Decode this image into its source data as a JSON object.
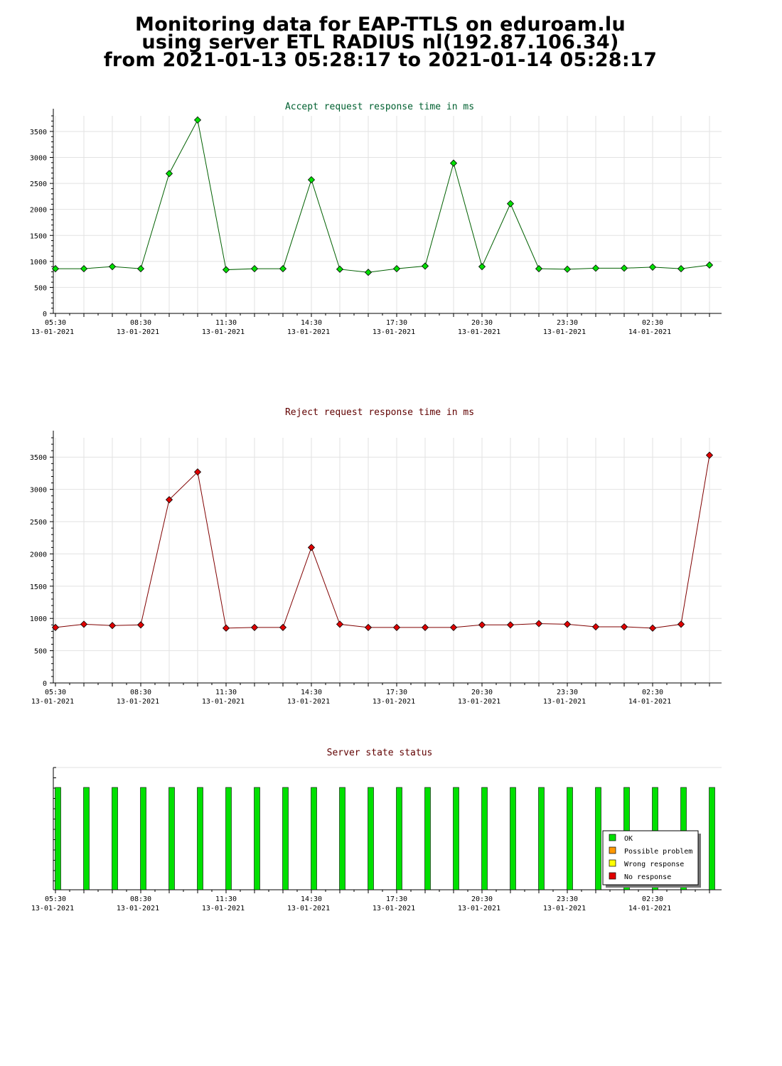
{
  "header": {
    "line1": "Monitoring data for EAP-TTLS on eduroam.lu",
    "line2": "using server ETL RADIUS nl(192.87.106.34)",
    "line3": "from 2021-01-13 05:28:17 to 2021-01-14 05:28:17"
  },
  "colors": {
    "accept_line": "#006000",
    "accept_marker": "#00e000",
    "reject_line": "#800000",
    "reject_marker": "#e00000",
    "accept_title": "#006030",
    "reject_title": "#600000",
    "status_title": "#600000",
    "ok": "#00e000",
    "possible_problem": "#ff9900",
    "wrong_response": "#ffff00",
    "no_response": "#e00000"
  },
  "chart_data": [
    {
      "type": "line",
      "title": "Accept request response time in ms",
      "ylim": [
        0,
        3800
      ],
      "yticks": [
        0,
        500,
        1000,
        1500,
        2000,
        2500,
        3000,
        3500
      ],
      "x_tick_labels": [
        {
          "time": "05:30",
          "date": "13-01-2021"
        },
        {
          "time": "08:30",
          "date": "13-01-2021"
        },
        {
          "time": "11:30",
          "date": "13-01-2021"
        },
        {
          "time": "14:30",
          "date": "13-01-2021"
        },
        {
          "time": "17:30",
          "date": "13-01-2021"
        },
        {
          "time": "20:30",
          "date": "13-01-2021"
        },
        {
          "time": "23:30",
          "date": "13-01-2021"
        },
        {
          "time": "02:30",
          "date": "14-01-2021"
        }
      ],
      "grid": true,
      "series": [
        {
          "values": [
            860,
            860,
            900,
            860,
            2690,
            3720,
            840,
            860,
            860,
            2570,
            850,
            790,
            860,
            910,
            2890,
            900,
            2110,
            860,
            850,
            870,
            870,
            890,
            860,
            930
          ]
        }
      ]
    },
    {
      "type": "line",
      "title": "Reject request response time in ms",
      "ylim": [
        0,
        3800
      ],
      "yticks": [
        0,
        500,
        1000,
        1500,
        2000,
        2500,
        3000,
        3500
      ],
      "x_tick_labels": [
        {
          "time": "05:30",
          "date": "13-01-2021"
        },
        {
          "time": "08:30",
          "date": "13-01-2021"
        },
        {
          "time": "11:30",
          "date": "13-01-2021"
        },
        {
          "time": "14:30",
          "date": "13-01-2021"
        },
        {
          "time": "17:30",
          "date": "13-01-2021"
        },
        {
          "time": "20:30",
          "date": "13-01-2021"
        },
        {
          "time": "23:30",
          "date": "13-01-2021"
        },
        {
          "time": "02:30",
          "date": "14-01-2021"
        }
      ],
      "grid": true,
      "series": [
        {
          "values": [
            860,
            910,
            890,
            900,
            2840,
            3270,
            850,
            860,
            860,
            2100,
            910,
            860,
            860,
            860,
            860,
            900,
            900,
            920,
            910,
            870,
            870,
            850,
            910,
            3530
          ]
        }
      ]
    },
    {
      "type": "bar",
      "title": "Server state status",
      "x_tick_labels": [
        {
          "time": "05:30",
          "date": "13-01-2021"
        },
        {
          "time": "08:30",
          "date": "13-01-2021"
        },
        {
          "time": "11:30",
          "date": "13-01-2021"
        },
        {
          "time": "14:30",
          "date": "13-01-2021"
        },
        {
          "time": "17:30",
          "date": "13-01-2021"
        },
        {
          "time": "20:30",
          "date": "13-01-2021"
        },
        {
          "time": "23:30",
          "date": "13-01-2021"
        },
        {
          "time": "02:30",
          "date": "14-01-2021"
        }
      ],
      "statuses": [
        "OK",
        "OK",
        "OK",
        "OK",
        "OK",
        "OK",
        "OK",
        "OK",
        "OK",
        "OK",
        "OK",
        "OK",
        "OK",
        "OK",
        "OK",
        "OK",
        "OK",
        "OK",
        "OK",
        "OK",
        "OK",
        "OK",
        "OK",
        "OK"
      ],
      "legend": [
        "OK",
        "Possible problem",
        "Wrong response",
        "No response"
      ],
      "legend_position": "bottom-right"
    }
  ]
}
